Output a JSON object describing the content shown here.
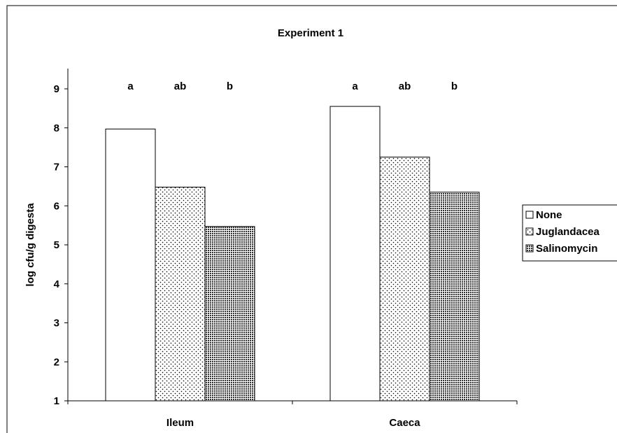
{
  "chart_data": {
    "type": "bar",
    "title": "Experiment 1",
    "xlabel": "",
    "ylabel": "log cfu/g digesta",
    "ylim": [
      1,
      9
    ],
    "yticks": [
      1,
      2,
      3,
      4,
      5,
      6,
      7,
      8,
      9
    ],
    "categories": [
      "Ileum",
      "Caeca"
    ],
    "series": [
      {
        "name": "None",
        "values": [
          7.97,
          8.55
        ],
        "pattern": "solid-white"
      },
      {
        "name": "Juglandacea",
        "values": [
          6.48,
          7.25
        ],
        "pattern": "dots"
      },
      {
        "name": "Salinomycin",
        "values": [
          5.47,
          6.35
        ],
        "pattern": "crosshatch"
      }
    ],
    "annotations": [
      [
        "a",
        "ab",
        "b"
      ],
      [
        "a",
        "ab",
        "b"
      ]
    ],
    "grid": false,
    "legend_position": "right"
  }
}
